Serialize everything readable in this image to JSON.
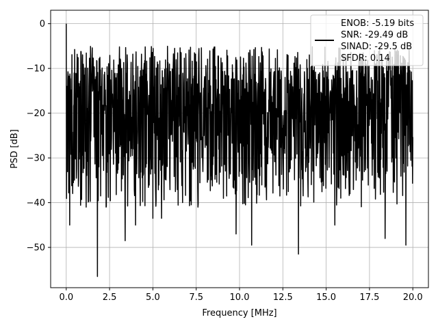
{
  "chart_data": {
    "type": "line",
    "xlabel": "Frequency [MHz]",
    "ylabel": "PSD [dB]",
    "xlim": [
      -0.9,
      20.9
    ],
    "ylim": [
      -59,
      3
    ],
    "xticks": [
      0.0,
      2.5,
      5.0,
      7.5,
      10.0,
      12.5,
      15.0,
      17.5,
      20.0
    ],
    "xtick_labels": [
      "0.0",
      "2.5",
      "5.0",
      "7.5",
      "10.0",
      "12.5",
      "15.0",
      "17.5",
      "20.0"
    ],
    "yticks": [
      0,
      -10,
      -20,
      -30,
      -40,
      -50
    ],
    "ytick_labels": [
      "0",
      "−10",
      "−20",
      "−30",
      "−40",
      "−50"
    ],
    "grid": true,
    "legend_position": "top-right",
    "legend_lines": [
      "ENOB: -5.19 bits",
      "SNR: -29.49 dB",
      "SINAD: -29.5 dB",
      "SFDR: 0.14"
    ],
    "series": [
      {
        "color": "#000000",
        "x_range": [
          0,
          20
        ],
        "noise_floor_db": -20,
        "upper_envelope_db": -8,
        "lower_envelope_db": -35,
        "peaks": [
          {
            "x": 0.0,
            "y": 0
          },
          {
            "x": 0.05,
            "y": -14
          }
        ],
        "dips": [
          {
            "x": 0.2,
            "y": -45
          },
          {
            "x": 1.15,
            "y": -41
          },
          {
            "x": 1.8,
            "y": -56.5
          },
          {
            "x": 2.3,
            "y": -41
          },
          {
            "x": 3.4,
            "y": -48.5
          },
          {
            "x": 4.0,
            "y": -45
          },
          {
            "x": 5.0,
            "y": -43.5
          },
          {
            "x": 5.5,
            "y": -43.5
          },
          {
            "x": 7.6,
            "y": -41
          },
          {
            "x": 9.8,
            "y": -47
          },
          {
            "x": 10.7,
            "y": -49.5
          },
          {
            "x": 13.4,
            "y": -51.5
          },
          {
            "x": 15.5,
            "y": -45
          },
          {
            "x": 18.4,
            "y": -48
          },
          {
            "x": 19.6,
            "y": -49.5
          }
        ]
      }
    ]
  }
}
